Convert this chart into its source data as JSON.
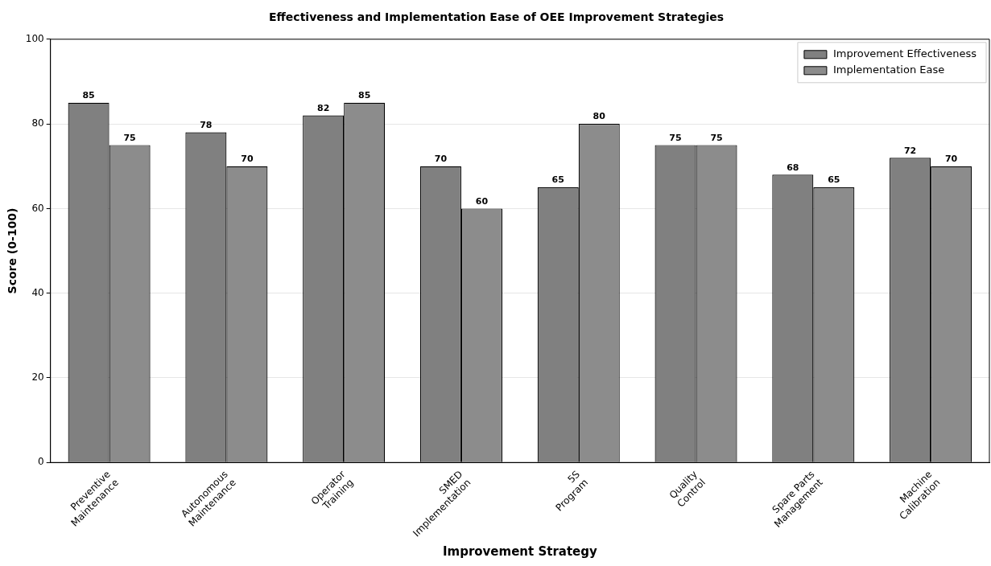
{
  "chart_data": {
    "type": "bar",
    "title": "Effectiveness and Implementation Ease of OEE Improvement Strategies",
    "xlabel": "Improvement Strategy",
    "ylabel": "Score (0-100)",
    "categories": [
      "Preventive\nMaintenance",
      "Autonomous\nMaintenance",
      "Operator\nTraining",
      "SMED\nImplementation",
      "5S\nProgram",
      "Quality\nControl",
      "Spare Parts\nManagement",
      "Machine\nCalibration"
    ],
    "series": [
      {
        "name": "Improvement Effectiveness",
        "color": "#808080",
        "values": [
          85,
          78,
          82,
          70,
          65,
          75,
          68,
          72
        ]
      },
      {
        "name": "Implementation Ease",
        "color": "#8c8c8c",
        "values": [
          75,
          70,
          85,
          60,
          80,
          75,
          65,
          70
        ]
      }
    ],
    "ylim": [
      0,
      100
    ],
    "yticks": [
      0,
      20,
      40,
      60,
      80,
      100
    ],
    "grid": "y",
    "legend": "top right",
    "data_labels": true
  }
}
